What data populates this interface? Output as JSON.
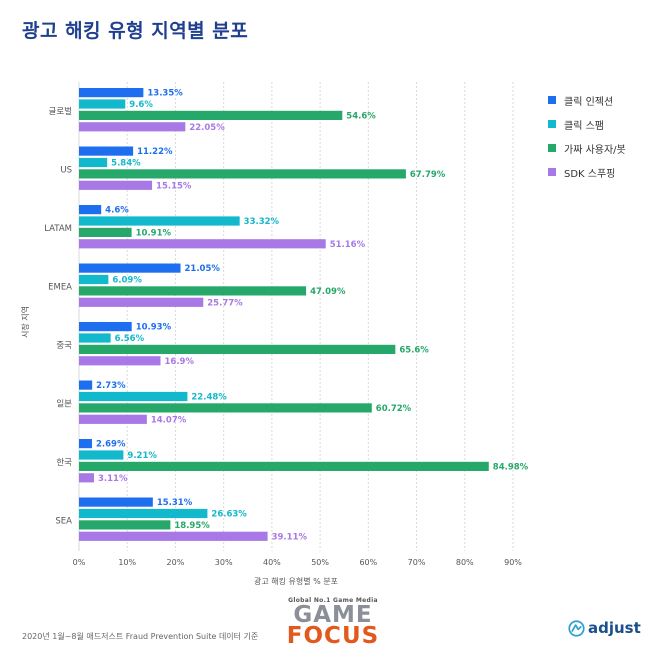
{
  "title": "광고 해킹 유형 지역별 분포",
  "footnote": "2020년 1월~8월 애드저스트 Fraud Prevention Suite 데이터 기준",
  "watermark": {
    "small": "Global No.1 Game Media",
    "line1": "GAME",
    "line2": "FOCUS"
  },
  "brand": {
    "name": "adjust",
    "icon": "adjust-logo-icon"
  },
  "colors": {
    "click_injection": "#1e6ff0",
    "click_spam": "#12b8cc",
    "fake_user": "#26a86b",
    "sdk_spoofing": "#a879e6"
  },
  "chart_data": {
    "type": "bar",
    "orientation": "horizontal",
    "title": "광고 해킹 유형 지역별 분포",
    "xlabel": "광고 해킹 유형별 % 분포",
    "ylabel": "시장 지역",
    "xlim": [
      0,
      90
    ],
    "xticks": [
      0,
      10,
      20,
      30,
      40,
      50,
      60,
      70,
      80,
      90
    ],
    "xtick_labels": [
      "0%",
      "10%",
      "20%",
      "30%",
      "40%",
      "50%",
      "60%",
      "70%",
      "80%",
      "90%"
    ],
    "grid": true,
    "legend_position": "top-right",
    "categories": [
      "글로벌",
      "US",
      "LATAM",
      "EMEA",
      "중국",
      "일본",
      "한국",
      "SEA"
    ],
    "series": [
      {
        "name": "클릭 인젝션",
        "color": "#1e6ff0",
        "values": [
          13.35,
          11.22,
          4.6,
          21.05,
          10.93,
          2.73,
          2.69,
          15.31
        ],
        "labels": [
          "13.35%",
          "11.22%",
          "4.6%",
          "21.05%",
          "10.93%",
          "2.73%",
          "2.69%",
          "15.31%"
        ]
      },
      {
        "name": "클릭 스팸",
        "color": "#12b8cc",
        "values": [
          9.6,
          5.84,
          33.32,
          6.09,
          6.56,
          22.48,
          9.21,
          26.63
        ],
        "labels": [
          "9.6%",
          "5.84%",
          "33.32%",
          "6.09%",
          "6.56%",
          "22.48%",
          "9.21%",
          "26.63%"
        ]
      },
      {
        "name": "가짜 사용자/봇",
        "color": "#26a86b",
        "values": [
          54.6,
          67.79,
          10.91,
          47.09,
          65.6,
          60.72,
          84.98,
          18.95
        ],
        "labels": [
          "54.6%",
          "67.79%",
          "10.91%",
          "47.09%",
          "65.6%",
          "60.72%",
          "84.98%",
          "18.95%"
        ]
      },
      {
        "name": "SDK 스푸핑",
        "color": "#a879e6",
        "values": [
          22.05,
          15.15,
          51.16,
          25.77,
          16.9,
          14.07,
          3.11,
          39.11
        ],
        "labels": [
          "22.05%",
          "15.15%",
          "51.16%",
          "25.77%",
          "16.9%",
          "14.07%",
          "3.11%",
          "39.11%"
        ]
      }
    ]
  }
}
